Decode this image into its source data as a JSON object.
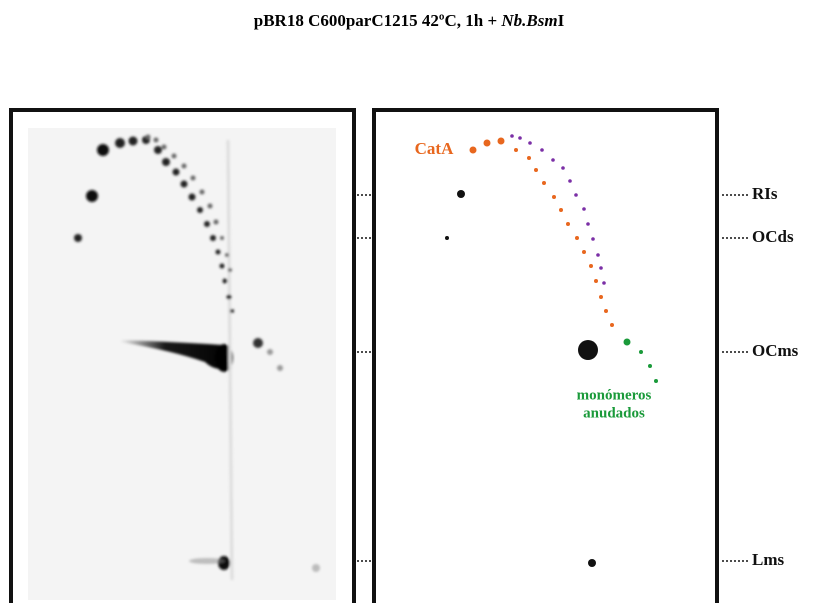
{
  "title": {
    "prefix": "pBR18 C600parC1215 42ºC, 1h + ",
    "italic": "Nb.Bsm",
    "suffix": "I"
  },
  "annotations": {
    "cata": "CatA",
    "knotted_1": "monómeros",
    "knotted_2": "anudados"
  },
  "bands": [
    "RIs",
    "OCds",
    "OCms",
    "Lms"
  ]
}
